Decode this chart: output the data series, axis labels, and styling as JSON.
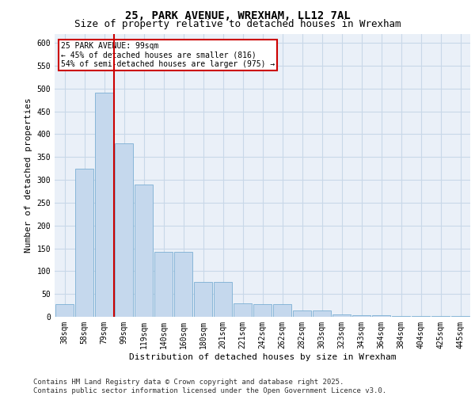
{
  "title1": "25, PARK AVENUE, WREXHAM, LL12 7AL",
  "title2": "Size of property relative to detached houses in Wrexham",
  "xlabel": "Distribution of detached houses by size in Wrexham",
  "ylabel": "Number of detached properties",
  "categories": [
    "38sqm",
    "58sqm",
    "79sqm",
    "99sqm",
    "119sqm",
    "140sqm",
    "160sqm",
    "180sqm",
    "201sqm",
    "221sqm",
    "242sqm",
    "262sqm",
    "282sqm",
    "303sqm",
    "323sqm",
    "343sqm",
    "364sqm",
    "384sqm",
    "404sqm",
    "425sqm",
    "445sqm"
  ],
  "values": [
    28,
    325,
    490,
    380,
    290,
    143,
    143,
    76,
    76,
    30,
    27,
    27,
    14,
    14,
    6,
    3,
    3,
    2,
    1,
    1,
    1
  ],
  "bar_color": "#c5d8ed",
  "bar_edge_color": "#7bafd4",
  "grid_color": "#c8d8e8",
  "bg_color": "#eaf0f8",
  "vline_color": "#cc0000",
  "vline_x_idx": 2.5,
  "annotation_text": "25 PARK AVENUE: 99sqm\n← 45% of detached houses are smaller (816)\n54% of semi-detached houses are larger (975) →",
  "annotation_box_color": "#cc0000",
  "ylim": [
    0,
    620
  ],
  "yticks": [
    0,
    50,
    100,
    150,
    200,
    250,
    300,
    350,
    400,
    450,
    500,
    550,
    600
  ],
  "footer": "Contains HM Land Registry data © Crown copyright and database right 2025.\nContains public sector information licensed under the Open Government Licence v3.0.",
  "title_fontsize": 10,
  "subtitle_fontsize": 9,
  "label_fontsize": 8,
  "tick_fontsize": 7,
  "footer_fontsize": 6.5
}
